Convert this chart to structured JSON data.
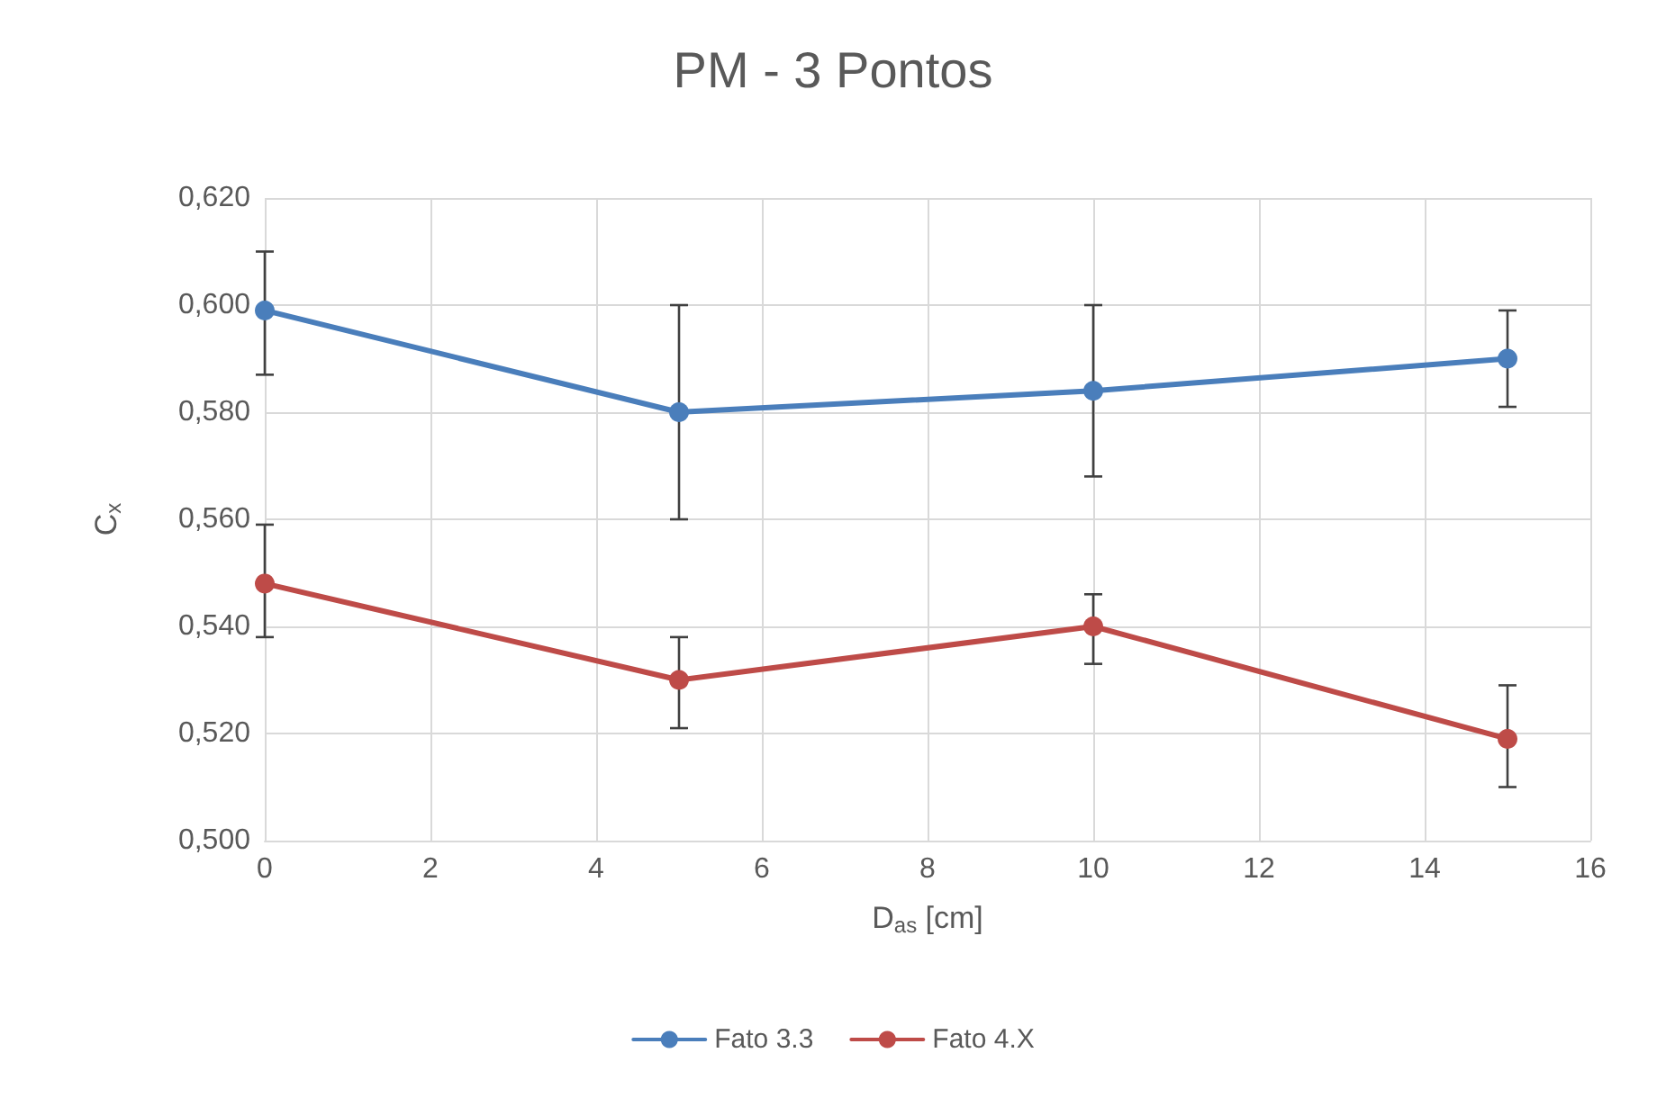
{
  "chart_data": {
    "type": "line",
    "title": "PM - 3 Pontos",
    "xlabel": "D$_{as}$ [cm]",
    "ylabel": "C$_{x}$",
    "x": [
      0,
      5,
      10,
      15
    ],
    "series": [
      {
        "name": "Fato 3.3",
        "color": "#4a7ebb",
        "values": [
          0.599,
          0.58,
          0.584,
          0.59
        ],
        "errors": [
          [
            0.587,
            0.61
          ],
          [
            0.56,
            0.6
          ],
          [
            0.568,
            0.6
          ],
          [
            0.581,
            0.599
          ]
        ]
      },
      {
        "name": "Fato 4.X",
        "color": "#be4b48",
        "values": [
          0.548,
          0.53,
          0.54,
          0.519
        ],
        "errors": [
          [
            0.538,
            0.559
          ],
          [
            0.521,
            0.538
          ],
          [
            0.533,
            0.546
          ],
          [
            0.51,
            0.529
          ]
        ]
      }
    ],
    "xlim": [
      0,
      16
    ],
    "xticks": [
      0,
      2,
      4,
      6,
      8,
      10,
      12,
      14,
      16
    ],
    "ylim": [
      0.5,
      0.62
    ],
    "yticks": [
      {
        "value": 0.5,
        "label": "0,500"
      },
      {
        "value": 0.52,
        "label": "0,520"
      },
      {
        "value": 0.54,
        "label": "0,540"
      },
      {
        "value": 0.56,
        "label": "0,560"
      },
      {
        "value": 0.58,
        "label": "0,580"
      },
      {
        "value": 0.6,
        "label": "0,600"
      },
      {
        "value": 0.62,
        "label": "0,620"
      }
    ],
    "grid": true,
    "legend": "bottom",
    "marker": "circle",
    "line_style": "solid"
  }
}
